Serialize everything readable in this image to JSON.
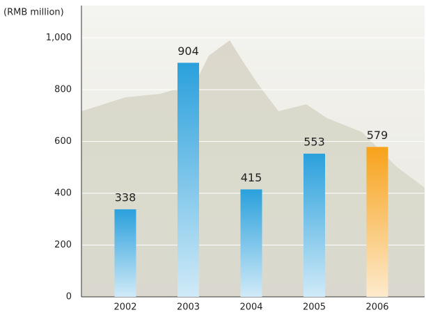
{
  "chart_data": {
    "type": "bar",
    "y_label": "(RMB million)",
    "categories": [
      "2002",
      "2003",
      "2004",
      "2005",
      "2006"
    ],
    "values": [
      338,
      904,
      415,
      553,
      579
    ],
    "colors": [
      "#2aa0dc",
      "#2aa0dc",
      "#2aa0dc",
      "#2aa0dc",
      "#f7a21b"
    ],
    "ylim": [
      0,
      1125
    ],
    "yticks": [
      0,
      200,
      400,
      600,
      800,
      {
        "value": 1000,
        "label": "1,000"
      }
    ],
    "grid": true
  }
}
